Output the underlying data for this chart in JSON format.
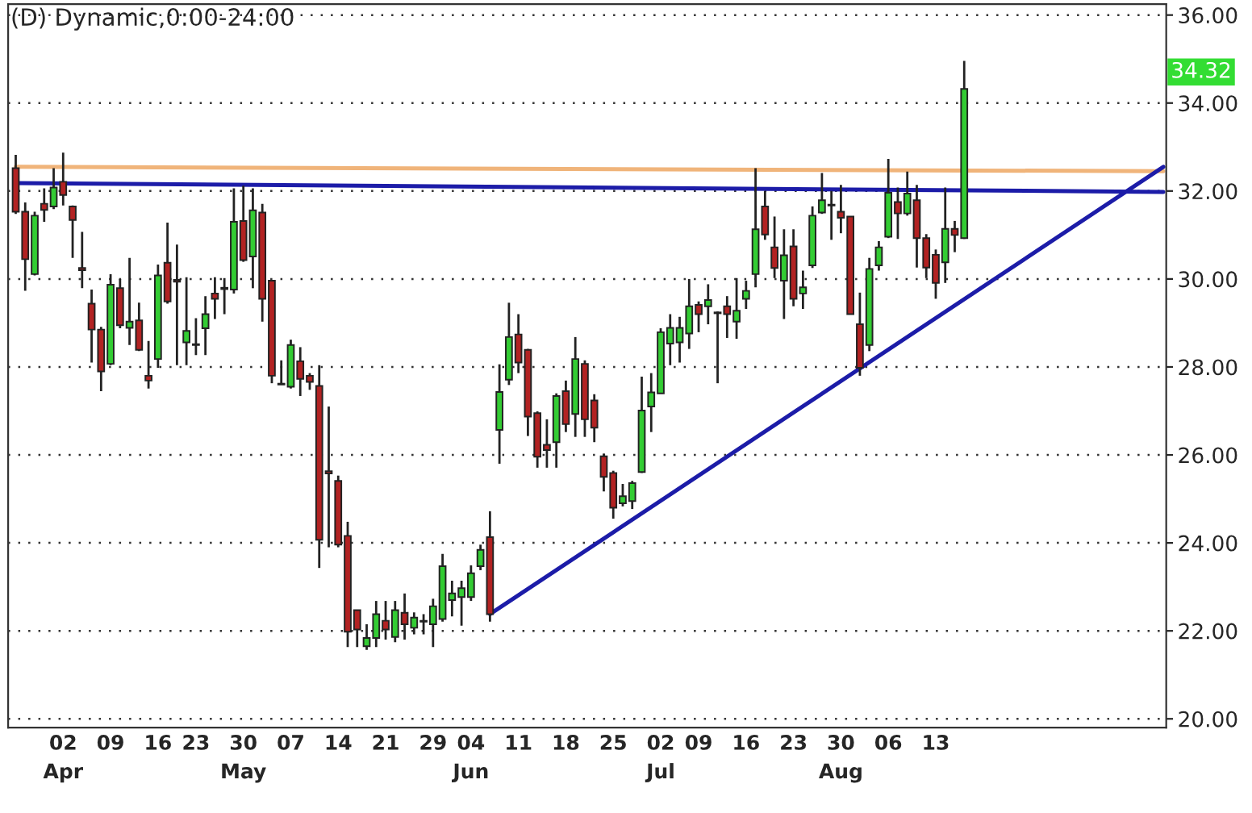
{
  "chart_data": {
    "type": "candlestick",
    "title": "(D) Dynamic,0:00-24:00",
    "categories": [
      null,
      null,
      null,
      null,
      null,
      "02\nApr",
      null,
      null,
      null,
      null,
      "09",
      null,
      null,
      null,
      null,
      "16",
      null,
      null,
      null,
      "23",
      null,
      null,
      null,
      null,
      "30\nMay",
      null,
      null,
      null,
      null,
      "07",
      null,
      null,
      null,
      null,
      "14",
      null,
      null,
      null,
      null,
      "21",
      null,
      null,
      null,
      null,
      "29",
      null,
      null,
      null,
      "04\nJun",
      null,
      null,
      null,
      null,
      "11",
      null,
      null,
      null,
      null,
      "18",
      null,
      null,
      null,
      null,
      "25",
      null,
      null,
      null,
      null,
      "02\nJul",
      null,
      null,
      null,
      "09",
      null,
      null,
      null,
      null,
      "16",
      null,
      null,
      null,
      null,
      "23",
      null,
      null,
      null,
      null,
      "30\nAug",
      null,
      null,
      null,
      null,
      "06",
      null,
      null,
      null,
      null,
      "13",
      null,
      null,
      null,
      null,
      null,
      null,
      null,
      null,
      null,
      null,
      null,
      null,
      null,
      null,
      null,
      null,
      null,
      null,
      null,
      null,
      null,
      null,
      null,
      null
    ],
    "ohlc": [
      [
        32.52,
        32.82,
        31.48,
        31.53
      ],
      [
        31.53,
        31.74,
        29.73,
        30.45
      ],
      [
        30.11,
        31.53,
        30.08,
        31.44
      ],
      [
        31.71,
        32.06,
        31.3,
        31.57
      ],
      [
        31.65,
        32.52,
        31.59,
        32.08
      ],
      [
        32.21,
        32.87,
        31.67,
        31.91
      ],
      [
        31.65,
        31.67,
        30.48,
        31.34
      ],
      [
        30.25,
        31.07,
        29.79,
        30.2
      ],
      [
        29.44,
        29.76,
        28.1,
        28.85
      ],
      [
        28.85,
        28.91,
        27.45,
        27.9
      ],
      [
        28.07,
        30.11,
        28.04,
        29.87
      ],
      [
        29.79,
        30.0,
        28.88,
        28.95
      ],
      [
        28.89,
        30.48,
        28.5,
        29.03
      ],
      [
        29.06,
        29.46,
        28.36,
        28.39
      ],
      [
        27.8,
        28.59,
        27.51,
        27.69
      ],
      [
        28.18,
        30.33,
        27.98,
        30.08
      ],
      [
        30.37,
        31.28,
        29.44,
        29.49
      ],
      [
        29.98,
        30.78,
        28.04,
        29.94
      ],
      [
        28.56,
        30.04,
        28.04,
        28.82
      ],
      [
        28.52,
        29.11,
        28.27,
        28.5
      ],
      [
        28.88,
        29.61,
        28.27,
        29.2
      ],
      [
        29.67,
        30.04,
        29.09,
        29.55
      ],
      [
        29.8,
        30.02,
        29.2,
        29.77
      ],
      [
        29.76,
        32.06,
        29.67,
        31.3
      ],
      [
        31.32,
        32.12,
        30.39,
        30.43
      ],
      [
        30.51,
        32.06,
        29.79,
        31.56
      ],
      [
        31.51,
        31.71,
        29.03,
        29.55
      ],
      [
        29.96,
        29.96,
        27.63,
        27.8
      ],
      [
        27.62,
        28.15,
        27.6,
        27.6
      ],
      [
        27.55,
        28.62,
        27.51,
        28.5
      ],
      [
        28.13,
        28.45,
        27.34,
        27.73
      ],
      [
        27.8,
        27.86,
        27.48,
        27.66
      ],
      [
        27.57,
        28.04,
        23.43,
        24.07
      ],
      [
        25.63,
        27.1,
        23.9,
        25.58
      ],
      [
        25.41,
        25.53,
        23.9,
        23.96
      ],
      [
        24.16,
        24.48,
        21.63,
        21.98
      ],
      [
        22.47,
        22.47,
        21.63,
        22.03
      ],
      [
        21.65,
        22.15,
        21.57,
        21.84
      ],
      [
        21.84,
        22.68,
        21.63,
        22.38
      ],
      [
        22.23,
        22.68,
        21.8,
        22.03
      ],
      [
        21.86,
        22.68,
        21.74,
        22.47
      ],
      [
        22.41,
        22.85,
        21.8,
        22.15
      ],
      [
        22.07,
        22.42,
        21.92,
        22.3
      ],
      [
        22.22,
        22.38,
        21.92,
        22.21
      ],
      [
        22.15,
        22.73,
        21.63,
        22.56
      ],
      [
        22.27,
        23.75,
        22.21,
        23.47
      ],
      [
        22.7,
        23.14,
        22.33,
        22.85
      ],
      [
        22.77,
        23.14,
        22.12,
        22.97
      ],
      [
        22.77,
        23.49,
        22.68,
        23.31
      ],
      [
        23.47,
        23.96,
        23.38,
        23.84
      ],
      [
        24.13,
        24.72,
        22.21,
        22.38
      ],
      [
        26.57,
        28.06,
        25.8,
        27.43
      ],
      [
        27.71,
        29.46,
        27.59,
        28.68
      ],
      [
        28.74,
        29.2,
        27.86,
        28.1
      ],
      [
        28.39,
        28.41,
        26.43,
        26.87
      ],
      [
        26.95,
        26.99,
        25.71,
        25.96
      ],
      [
        26.23,
        26.81,
        25.71,
        26.11
      ],
      [
        26.29,
        27.4,
        25.71,
        27.34
      ],
      [
        27.45,
        27.69,
        26.52,
        26.7
      ],
      [
        26.93,
        28.68,
        26.41,
        28.18
      ],
      [
        28.07,
        28.15,
        26.41,
        26.81
      ],
      [
        27.24,
        27.38,
        26.29,
        26.62
      ],
      [
        25.97,
        26.03,
        25.17,
        25.5
      ],
      [
        25.59,
        25.64,
        24.55,
        24.8
      ],
      [
        24.9,
        25.34,
        24.83,
        25.06
      ],
      [
        24.95,
        25.41,
        24.77,
        25.36
      ],
      [
        25.61,
        27.78,
        25.59,
        27.01
      ],
      [
        27.1,
        27.86,
        26.52,
        27.42
      ],
      [
        27.4,
        28.88,
        27.4,
        28.79
      ],
      [
        28.53,
        29.2,
        28.04,
        28.89
      ],
      [
        28.56,
        29.14,
        28.1,
        28.89
      ],
      [
        28.76,
        30.0,
        28.41,
        29.38
      ],
      [
        29.41,
        29.49,
        28.79,
        29.2
      ],
      [
        29.38,
        29.88,
        28.97,
        29.52
      ],
      [
        29.24,
        29.26,
        27.63,
        29.22
      ],
      [
        29.38,
        29.61,
        28.66,
        29.2
      ],
      [
        29.03,
        30.02,
        28.64,
        29.28
      ],
      [
        29.55,
        29.96,
        29.32,
        29.73
      ],
      [
        30.11,
        32.52,
        29.81,
        31.13
      ],
      [
        31.65,
        32.0,
        30.89,
        31.01
      ],
      [
        30.72,
        31.42,
        30.02,
        30.25
      ],
      [
        29.96,
        31.13,
        29.09,
        30.54
      ],
      [
        30.74,
        31.13,
        29.38,
        29.55
      ],
      [
        29.67,
        30.19,
        29.32,
        29.81
      ],
      [
        30.31,
        31.65,
        30.25,
        31.44
      ],
      [
        31.51,
        32.41,
        31.48,
        31.79
      ],
      [
        31.69,
        32.0,
        30.89,
        31.67
      ],
      [
        31.53,
        32.14,
        31.04,
        31.39
      ],
      [
        31.42,
        31.42,
        29.2,
        29.2
      ],
      [
        28.97,
        29.69,
        27.8,
        27.98
      ],
      [
        28.5,
        30.48,
        28.36,
        30.23
      ],
      [
        30.31,
        30.86,
        30.19,
        30.72
      ],
      [
        30.96,
        32.73,
        30.93,
        31.96
      ],
      [
        31.75,
        32.08,
        30.91,
        31.49
      ],
      [
        31.49,
        32.44,
        31.44,
        31.94
      ],
      [
        31.79,
        32.14,
        30.26,
        30.93
      ],
      [
        30.93,
        31.02,
        30.02,
        30.26
      ],
      [
        30.55,
        30.67,
        29.55,
        29.91
      ],
      [
        30.38,
        32.08,
        29.91,
        31.14
      ],
      [
        31.14,
        31.32,
        30.61,
        31.0
      ],
      [
        30.93,
        34.96,
        30.91,
        34.32
      ],
      null,
      null,
      null,
      null,
      null,
      null,
      null,
      null,
      null,
      null,
      null,
      null,
      null,
      null,
      null,
      null,
      null,
      null,
      null,
      null,
      null
    ],
    "colors": [
      "#b22222",
      "#b22222",
      "#33cc33",
      "#b22222",
      "#33cc33",
      "#b22222",
      "#b22222",
      "#b22222",
      "#b22222",
      "#b22222",
      "#33cc33",
      "#b22222",
      "#33cc33",
      "#b22222",
      "#b22222",
      "#33cc33",
      "#b22222",
      "#b22222",
      "#33cc33",
      "#b22222",
      "#33cc33",
      "#b22222",
      "#b22222",
      "#33cc33",
      "#b22222",
      "#33cc33",
      "#b22222",
      "#b22222",
      "#b22222",
      "#33cc33",
      "#b22222",
      "#b22222",
      "#b22222",
      "#b22222",
      "#b22222",
      "#b22222",
      "#b22222",
      "#33cc33",
      "#33cc33",
      "#b22222",
      "#33cc33",
      "#b22222",
      "#33cc33",
      "#b22222",
      "#33cc33",
      "#33cc33",
      "#33cc33",
      "#33cc33",
      "#33cc33",
      "#33cc33",
      "#b22222",
      "#33cc33",
      "#33cc33",
      "#b22222",
      "#b22222",
      "#b22222",
      "#b22222",
      "#33cc33",
      "#b22222",
      "#33cc33",
      "#b22222",
      "#b22222",
      "#b22222",
      "#b22222",
      "#33cc33",
      "#33cc33",
      "#33cc33",
      "#33cc33",
      "#33cc33",
      "#33cc33",
      "#33cc33",
      "#33cc33",
      "#b22222",
      "#33cc33",
      "#b22222",
      "#b22222",
      "#33cc33",
      "#33cc33",
      "#33cc33",
      "#b22222",
      "#b22222",
      "#33cc33",
      "#b22222",
      "#33cc33",
      "#33cc33",
      "#33cc33",
      "#b22222",
      "#b22222",
      "#b22222",
      "#b22222",
      "#33cc33",
      "#33cc33",
      "#33cc33",
      "#b22222",
      "#33cc33",
      "#b22222",
      "#b22222",
      "#b22222",
      "#33cc33",
      "#b22222",
      "#33cc33",
      null,
      null,
      null,
      null,
      null,
      null,
      null,
      null,
      null,
      null,
      null,
      null,
      null,
      null,
      null,
      null,
      null,
      null,
      null,
      null,
      null
    ],
    "series": [
      {
        "type": "line",
        "color": "#f0b47a",
        "values": [
          32.55,
          null,
          null,
          null,
          null,
          null,
          null,
          null,
          null,
          null,
          null,
          null,
          null,
          null,
          null,
          null,
          null,
          null,
          null,
          null,
          null,
          null,
          null,
          null,
          null,
          null,
          null,
          null,
          null,
          null,
          null,
          null,
          null,
          null,
          null,
          null,
          null,
          null,
          null,
          null,
          null,
          null,
          null,
          null,
          null,
          null,
          null,
          null,
          null,
          null,
          null,
          null,
          null,
          null,
          null,
          null,
          null,
          null,
          null,
          null,
          null,
          null,
          null,
          null,
          null,
          null,
          null,
          null,
          null,
          null,
          null,
          null,
          null,
          null,
          null,
          null,
          null,
          null,
          null,
          null,
          null,
          null,
          null,
          null,
          null,
          null,
          null,
          null,
          null,
          null,
          null,
          null,
          null,
          null,
          null,
          null,
          null,
          null,
          null,
          null,
          null,
          null,
          null,
          null,
          null,
          null,
          null,
          null,
          null,
          null,
          null,
          null,
          null,
          null,
          null,
          null,
          null,
          null,
          null,
          null,
          null,
          32.45
        ]
      },
      {
        "type": "line",
        "color": "#1c1ca8",
        "values": [
          32.18,
          null,
          null,
          null,
          null,
          null,
          null,
          null,
          null,
          null,
          null,
          null,
          null,
          null,
          null,
          null,
          null,
          null,
          null,
          null,
          null,
          null,
          null,
          null,
          null,
          null,
          null,
          null,
          null,
          null,
          null,
          null,
          null,
          null,
          null,
          null,
          null,
          null,
          null,
          null,
          null,
          null,
          null,
          null,
          null,
          null,
          null,
          null,
          null,
          null,
          null,
          null,
          null,
          null,
          null,
          null,
          null,
          null,
          null,
          null,
          null,
          null,
          null,
          null,
          null,
          null,
          null,
          null,
          null,
          null,
          null,
          null,
          null,
          null,
          null,
          null,
          null,
          null,
          null,
          null,
          null,
          null,
          null,
          null,
          null,
          null,
          null,
          null,
          null,
          null,
          null,
          null,
          null,
          null,
          null,
          null,
          null,
          null,
          null,
          null,
          null,
          null,
          null,
          null,
          null,
          null,
          null,
          null,
          null,
          null,
          null,
          null,
          null,
          null,
          null,
          null,
          null,
          null,
          null,
          null,
          null,
          31.98
        ]
      },
      {
        "type": "line",
        "color": "#1c1ca8",
        "values": [
          null,
          null,
          null,
          null,
          null,
          null,
          null,
          null,
          null,
          null,
          null,
          null,
          null,
          null,
          null,
          null,
          null,
          null,
          null,
          null,
          null,
          null,
          null,
          null,
          null,
          null,
          null,
          null,
          null,
          null,
          null,
          null,
          null,
          null,
          null,
          null,
          null,
          null,
          null,
          null,
          null,
          null,
          null,
          null,
          null,
          null,
          null,
          null,
          null,
          null,
          22.38,
          null,
          null,
          null,
          null,
          null,
          null,
          null,
          null,
          null,
          null,
          null,
          null,
          null,
          null,
          null,
          null,
          null,
          null,
          null,
          null,
          null,
          null,
          null,
          null,
          null,
          null,
          null,
          null,
          null,
          null,
          null,
          null,
          null,
          null,
          null,
          null,
          null,
          null,
          null,
          null,
          null,
          null,
          null,
          null,
          null,
          null,
          null,
          null,
          null,
          null,
          null,
          null,
          null,
          null,
          null,
          null,
          null,
          null,
          null,
          null,
          null,
          null,
          null,
          null,
          null,
          null,
          null,
          null,
          null,
          null,
          32.55
        ]
      }
    ],
    "ylim": [
      19.8,
      36.25
    ],
    "yticks": [
      {
        "value": 20,
        "label": "20.00"
      },
      {
        "value": 22,
        "label": "22.00"
      },
      {
        "value": 24,
        "label": "24.00"
      },
      {
        "value": 26,
        "label": "26.00"
      },
      {
        "value": 28,
        "label": "28.00"
      },
      {
        "value": 30,
        "label": "30.00"
      },
      {
        "value": 32,
        "label": "32.00"
      },
      {
        "value": 34,
        "label": "34.00"
      },
      {
        "value": 36,
        "label": "36.00"
      }
    ],
    "annotations": [
      "34.32"
    ],
    "grid": "y",
    "legend": false
  }
}
